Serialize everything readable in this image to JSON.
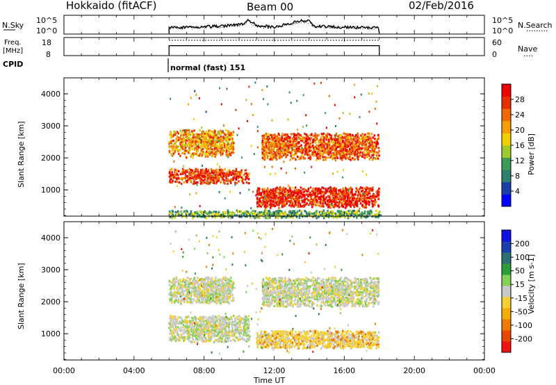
{
  "header": {
    "station": "Hokkaido (fitACF)",
    "beam": "Beam 00",
    "date": "02/Feb/2016"
  },
  "noise_panel": {
    "left_label": "N.Sky",
    "left_ticks": [
      "10^5",
      "10^0"
    ],
    "right_ticks": [
      "10^5",
      "10^0"
    ],
    "right_label": "N.Search",
    "right_legend": "·········"
  },
  "freq_panel": {
    "left_label_1": "Freq.",
    "left_label_2": "[MHz]",
    "left_ticks": [
      "18",
      "8"
    ],
    "right_ticks": [
      "60",
      "0"
    ],
    "right_label": "Nave",
    "right_legend": "····"
  },
  "cpid": {
    "label": "CPID",
    "program": "normal (fast) 151"
  },
  "x_axis": {
    "label": "Time UT",
    "ticks": [
      "00:00",
      "04:00",
      "08:00",
      "12:00",
      "16:00",
      "20:00",
      "00:00"
    ]
  },
  "power_colorbar": {
    "label": "Power [dB]",
    "ticks": [
      "28",
      "24",
      "20",
      "16",
      "12",
      "8",
      "4"
    ],
    "colors": [
      "#0000ff",
      "#1a3fa8",
      "#2f7f6f",
      "#3b9a55",
      "#9fca2c",
      "#f0d000",
      "#f5a000",
      "#ef6a00",
      "#e73000",
      "#ee0000"
    ]
  },
  "velocity_colorbar": {
    "label": "Velocity [m s-1]",
    "ticks": [
      "200",
      "100",
      "50",
      "15",
      "-15",
      "-50",
      "-100",
      "-200"
    ],
    "colors": [
      "#f21414",
      "#e84800",
      "#ef7a00",
      "#f3ac00",
      "#f5cf30",
      "#c8c8c8",
      "#86d05a",
      "#2f9c3b",
      "#2d6f74",
      "#1c3fb0",
      "#1010e0"
    ]
  },
  "chart_data": {
    "type": "heatmap",
    "panels": [
      {
        "name": "power",
        "ylabel": "Slant Range [km]",
        "yticks": [
          1000,
          2000,
          3000,
          4000
        ],
        "ylim": [
          180,
          4500
        ],
        "xlim_hours": [
          0,
          24
        ],
        "data_extent_hours": [
          6.0,
          18.0
        ],
        "echo_bands": [
          {
            "t_start": 6.0,
            "t_end": 10.5,
            "range_start": 1250,
            "range_end": 1700,
            "mean_power_db": 24
          },
          {
            "t_start": 6.0,
            "t_end": 9.6,
            "range_start": 2100,
            "range_end": 2900,
            "mean_power_db": 19
          },
          {
            "t_start": 11.3,
            "t_end": 18.0,
            "range_start": 2000,
            "range_end": 2800,
            "mean_power_db": 22
          },
          {
            "t_start": 11.0,
            "t_end": 18.0,
            "range_start": 500,
            "range_end": 1100,
            "mean_power_db": 25
          },
          {
            "t_start": 6.0,
            "t_end": 18.0,
            "range_start": 180,
            "range_end": 400,
            "mean_power_db": 10
          }
        ]
      },
      {
        "name": "velocity",
        "ylabel": "Slant Range [km]",
        "yticks": [
          1000,
          2000,
          3000,
          4000
        ],
        "ylim": [
          180,
          4500
        ],
        "xlim_hours": [
          0,
          24
        ],
        "data_extent_hours": [
          6.0,
          18.0
        ],
        "echo_bands": [
          {
            "t_start": 6.0,
            "t_end": 10.5,
            "range_start": 800,
            "range_end": 1600,
            "mean_velocity": 0
          },
          {
            "t_start": 6.0,
            "t_end": 9.6,
            "range_start": 2000,
            "range_end": 2800,
            "mean_velocity": 0
          },
          {
            "t_start": 11.3,
            "t_end": 18.0,
            "range_start": 1900,
            "range_end": 2800,
            "mean_velocity": 0
          },
          {
            "t_start": 11.0,
            "t_end": 18.0,
            "range_start": 600,
            "range_end": 1100,
            "mean_velocity": -30
          }
        ]
      }
    ],
    "noise_trace": {
      "t_start": 6.0,
      "t_end": 18.0,
      "points_hours": [
        6.0,
        8.0,
        10.2,
        10.5,
        11.0,
        12.0,
        13.6,
        14.0,
        14.3,
        16.0,
        18.0
      ],
      "relative_level": [
        0.35,
        0.4,
        0.55,
        0.85,
        0.5,
        0.4,
        0.8,
        0.75,
        0.45,
        0.38,
        0.35
      ]
    },
    "freq_trace": {
      "t_start": 6.0,
      "t_end": 18.0,
      "relative_level": 0.55
    },
    "nave_trace": {
      "t_start": 6.0,
      "t_end": 18.0,
      "relative_level": 0.85
    }
  }
}
